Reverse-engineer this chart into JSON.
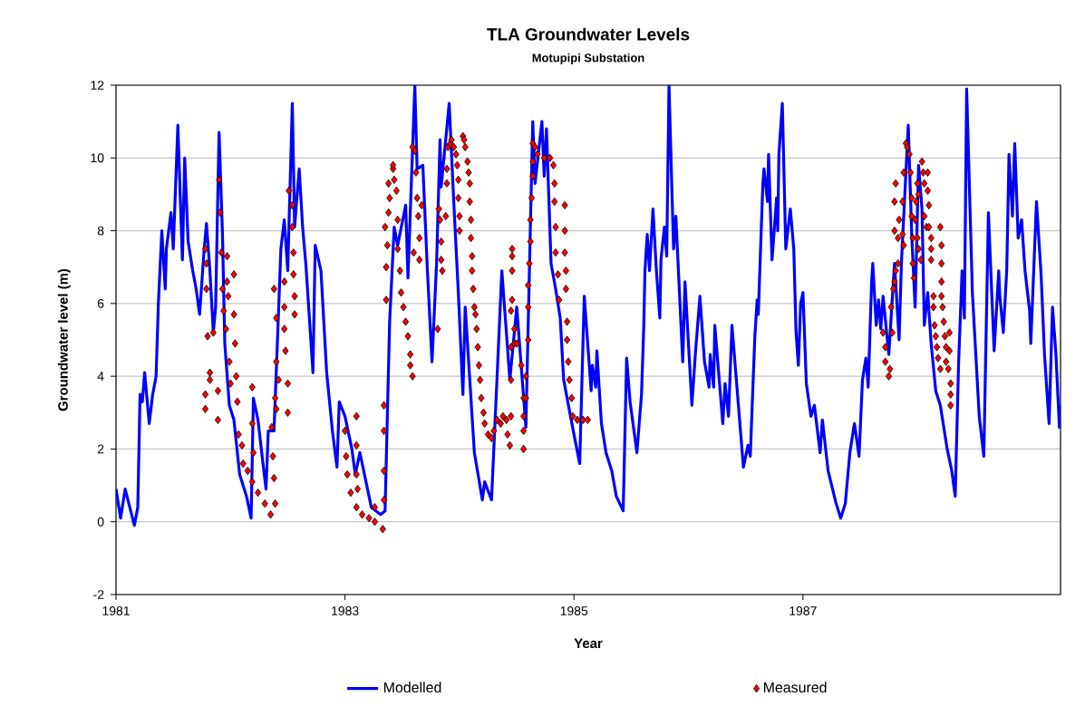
{
  "chart_data": {
    "type": "line",
    "title": "TLA Groundwater Levels",
    "subtitle": "Motupipi Substation",
    "xlabel": "Year",
    "ylabel": "Groundwater level (m)",
    "xlim": [
      1981,
      1989.25
    ],
    "xticks": [
      1981,
      1983,
      1985,
      1987
    ],
    "ylim": [
      -2,
      12
    ],
    "yticks": [
      -2,
      0,
      2,
      4,
      6,
      8,
      10,
      12
    ],
    "grid": "y",
    "legend": "bottom",
    "series": [
      {
        "name": "Modelled",
        "color": "#0000ff",
        "marker": "none",
        "x": [
          1981.0,
          1981.04,
          1981.08,
          1981.12,
          1981.16,
          1981.19,
          1981.21,
          1981.23,
          1981.25,
          1981.29,
          1981.32,
          1981.35,
          1981.37,
          1981.4,
          1981.43,
          1981.44,
          1981.48,
          1981.5,
          1981.54,
          1981.58,
          1981.6,
          1981.63,
          1981.67,
          1981.7,
          1981.73,
          1981.77,
          1981.79,
          1981.82,
          1981.85,
          1981.87,
          1981.9,
          1981.93,
          1981.95,
          1981.99,
          1982.03,
          1982.08,
          1982.14,
          1982.18,
          1982.2,
          1982.24,
          1982.28,
          1982.31,
          1982.33,
          1982.38,
          1982.42,
          1982.44,
          1982.47,
          1982.5,
          1982.54,
          1982.56,
          1982.6,
          1982.63,
          1982.66,
          1982.72,
          1982.74,
          1982.79,
          1982.84,
          1982.89,
          1982.93,
          1982.95,
          1983.0,
          1983.06,
          1983.09,
          1983.13,
          1983.23,
          1983.31,
          1983.35,
          1983.39,
          1983.43,
          1983.46,
          1983.53,
          1983.55,
          1983.61,
          1983.63,
          1983.68,
          1983.72,
          1983.76,
          1983.8,
          1983.83,
          1983.84,
          1983.91,
          1983.95,
          1983.99,
          1984.03,
          1984.05,
          1984.13,
          1984.2,
          1984.22,
          1984.28,
          1984.32,
          1984.37,
          1984.44,
          1984.5,
          1984.58,
          1984.64,
          1984.66,
          1984.72,
          1984.74,
          1984.76,
          1984.8,
          1984.84,
          1984.88,
          1984.91,
          1985.0,
          1985.05,
          1985.09,
          1985.15,
          1985.16,
          1985.19,
          1985.2,
          1985.24,
          1985.28,
          1985.33,
          1985.37,
          1985.43,
          1985.46,
          1985.49,
          1985.55,
          1985.59,
          1985.61,
          1985.62,
          1985.64,
          1985.66,
          1985.69,
          1985.72,
          1985.75,
          1985.76,
          1985.79,
          1985.81,
          1985.83,
          1985.87,
          1985.89,
          1985.95,
          1985.97,
          1986.03,
          1986.06,
          1986.1,
          1986.14,
          1986.18,
          1986.19,
          1986.22,
          1986.23,
          1986.3,
          1986.32,
          1986.35,
          1986.38,
          1986.48,
          1986.52,
          1986.54,
          1986.58,
          1986.6,
          1986.61,
          1986.65,
          1986.66,
          1986.69,
          1986.7,
          1986.73,
          1986.77,
          1986.78,
          1986.79,
          1986.82,
          1986.85,
          1986.89,
          1986.92,
          1986.94,
          1986.96,
          1986.98,
          1987.0,
          1987.03,
          1987.07,
          1987.1,
          1987.15,
          1987.17,
          1987.22,
          1987.29,
          1987.33,
          1987.37,
          1987.41,
          1987.45,
          1987.49,
          1987.52,
          1987.55,
          1987.57,
          1987.6,
          1987.61,
          1987.64,
          1987.66,
          1987.68,
          1987.7,
          1987.75,
          1987.8,
          1987.84,
          1987.86,
          1987.92,
          1987.95,
          1987.98,
          1988.01,
          1988.04,
          1988.06,
          1988.09,
          1988.12,
          1988.16,
          1988.2,
          1988.26,
          1988.3,
          1988.33,
          1988.36,
          1988.39,
          1988.41,
          1988.43,
          1988.48,
          1988.54,
          1988.58,
          1988.62,
          1988.67,
          1988.71,
          1988.72,
          1988.75,
          1988.78,
          1988.8,
          1988.83,
          1988.85,
          1988.88,
          1988.91,
          1988.94,
          1988.98,
          1988.99,
          1989.04,
          1989.08,
          1989.11,
          1989.15,
          1989.18,
          1989.21,
          1989.24,
          1989.25
        ],
        "values": [
          0.9,
          0.1,
          0.9,
          0.4,
          -0.1,
          0.4,
          3.5,
          3.3,
          4.1,
          2.7,
          3.5,
          4.0,
          6.0,
          8.0,
          6.4,
          7.5,
          8.5,
          7.5,
          10.9,
          7.2,
          10.0,
          7.7,
          6.9,
          6.4,
          5.7,
          7.5,
          8.2,
          6.9,
          5.2,
          5.9,
          10.7,
          7.9,
          4.9,
          3.2,
          2.8,
          1.3,
          0.7,
          0.1,
          3.4,
          2.8,
          1.7,
          0.9,
          2.5,
          2.5,
          5.8,
          7.5,
          8.3,
          6.9,
          11.5,
          8.1,
          9.7,
          8.1,
          7.0,
          4.1,
          7.6,
          6.9,
          4.1,
          2.5,
          1.5,
          3.3,
          2.9,
          2.0,
          1.3,
          1.9,
          0.4,
          0.2,
          0.3,
          5.5,
          8.1,
          7.6,
          8.7,
          6.7,
          12.0,
          9.7,
          9.8,
          6.9,
          4.4,
          7.1,
          10.5,
          9.2,
          11.5,
          8.8,
          6.3,
          3.5,
          5.9,
          1.9,
          0.6,
          1.1,
          0.6,
          3.4,
          6.9,
          3.9,
          5.9,
          2.6,
          11.0,
          9.3,
          11.0,
          9.5,
          10.8,
          7.1,
          6.4,
          5.6,
          3.9,
          2.4,
          1.6,
          6.2,
          3.6,
          4.3,
          3.7,
          4.7,
          2.7,
          1.9,
          1.4,
          0.7,
          0.3,
          4.5,
          3.3,
          1.9,
          3.5,
          5.4,
          6.9,
          7.9,
          6.9,
          8.6,
          6.9,
          5.6,
          7.2,
          8.1,
          7.3,
          12.0,
          7.5,
          8.4,
          4.4,
          6.6,
          3.2,
          4.6,
          6.2,
          4.4,
          3.7,
          4.6,
          3.7,
          5.4,
          2.7,
          3.8,
          2.9,
          5.4,
          1.5,
          2.1,
          1.8,
          5.1,
          6.1,
          5.7,
          9.3,
          9.7,
          8.8,
          10.1,
          7.2,
          8.9,
          8.0,
          10.1,
          11.5,
          7.5,
          8.6,
          7.5,
          5.2,
          4.3,
          6.0,
          6.3,
          3.8,
          2.9,
          3.2,
          1.9,
          2.8,
          1.4,
          0.5,
          0.1,
          0.5,
          1.9,
          2.7,
          1.8,
          3.9,
          4.5,
          3.7,
          6.6,
          7.1,
          5.4,
          6.1,
          5.3,
          6.2,
          4.6,
          7.1,
          5.0,
          7.1,
          10.9,
          7.9,
          5.9,
          9.8,
          8.6,
          5.4,
          6.3,
          4.9,
          3.6,
          3.2,
          2.0,
          1.4,
          0.7,
          4.4,
          6.9,
          5.6,
          11.9,
          6.3,
          2.9,
          1.8,
          8.5,
          4.7,
          6.9,
          6.2,
          5.2,
          6.9,
          10.1,
          8.4,
          10.4,
          7.8,
          8.3,
          6.9,
          5.8,
          4.9,
          8.8,
          6.8,
          4.6,
          2.7,
          5.9,
          4.6,
          2.6,
          3.2
        ]
      },
      {
        "name": "Measured",
        "type": "scatter",
        "color": "#ff0000",
        "marker": "diamond",
        "x": [
          1981.78,
          1981.79,
          1981.79,
          1981.78,
          1981.78,
          1981.8,
          1981.82,
          1981.82,
          1981.85,
          1981.89,
          1981.89,
          1981.9,
          1981.91,
          1981.92,
          1981.93,
          1981.94,
          1981.97,
          1981.97,
          1981.98,
          1981.96,
          1981.99,
          1982.0,
          1982.03,
          1982.03,
          1982.04,
          1982.05,
          1982.06,
          1982.07,
          1982.1,
          1982.11,
          1982.15,
          1982.19,
          1982.24,
          1982.3,
          1982.35,
          1982.19,
          1982.19,
          1982.2,
          1982.38,
          1982.36,
          1982.37,
          1982.38,
          1982.39,
          1982.4,
          1982.4,
          1982.39,
          1982.4,
          1982.42,
          1982.47,
          1982.47,
          1982.47,
          1982.48,
          1982.5,
          1982.5,
          1982.51,
          1982.54,
          1982.54,
          1982.55,
          1982.55,
          1982.56,
          1982.56,
          1983.0,
          1983.01,
          1983.02,
          1983.05,
          1983.1,
          1983.15,
          1983.21,
          1983.26,
          1983.33,
          1983.1,
          1983.1,
          1983.1,
          1983.11,
          1983.26,
          1983.34,
          1983.34,
          1983.34,
          1983.34,
          1983.36,
          1983.36,
          1983.37,
          1983.35,
          1983.38,
          1983.39,
          1983.38,
          1983.42,
          1983.42,
          1983.43,
          1983.45,
          1983.46,
          1983.46,
          1983.48,
          1983.49,
          1983.51,
          1983.53,
          1983.55,
          1983.57,
          1983.57,
          1983.59,
          1983.59,
          1983.61,
          1983.62,
          1983.63,
          1983.64,
          1983.65,
          1983.65,
          1983.6,
          1983.67,
          1983.81,
          1983.82,
          1983.83,
          1983.84,
          1983.84,
          1983.85,
          1983.88,
          1983.89,
          1983.89,
          1983.9,
          1983.92,
          1983.93,
          1983.95,
          1983.97,
          1983.98,
          1983.99,
          1983.99,
          1984.0,
          1984.0,
          1984.03,
          1984.04,
          1984.05,
          1984.07,
          1984.08,
          1984.09,
          1984.09,
          1984.1,
          1984.1,
          1984.11,
          1984.11,
          1984.12,
          1984.13,
          1984.14,
          1984.15,
          1984.16,
          1984.17,
          1984.18,
          1984.19,
          1984.21,
          1984.22,
          1984.25,
          1984.28,
          1984.3,
          1984.33,
          1984.36,
          1984.38,
          1984.41,
          1984.42,
          1984.44,
          1984.45,
          1984.45,
          1984.46,
          1984.46,
          1984.46,
          1984.46,
          1984.45,
          1984.48,
          1984.45,
          1984.48,
          1984.5,
          1984.54,
          1984.56,
          1984.56,
          1984.56,
          1984.56,
          1984.58,
          1984.58,
          1984.6,
          1984.6,
          1984.6,
          1984.61,
          1984.62,
          1984.62,
          1984.63,
          1984.64,
          1984.64,
          1984.64,
          1984.66,
          1984.68,
          1984.74,
          1984.79,
          1984.82,
          1984.83,
          1984.83,
          1984.84,
          1984.84,
          1984.86,
          1984.87,
          1984.92,
          1984.92,
          1984.92,
          1984.93,
          1984.93,
          1984.94,
          1984.94,
          1984.95,
          1984.96,
          1984.98,
          1984.99,
          1985.03,
          1985.08,
          1985.12,
          1987.7,
          1987.72,
          1987.72,
          1987.75,
          1987.76,
          1987.78,
          1987.77,
          1987.79,
          1987.8,
          1987.81,
          1987.83,
          1987.83,
          1987.8,
          1987.8,
          1987.81,
          1987.84,
          1987.87,
          1987.87,
          1987.88,
          1987.88,
          1987.9,
          1987.91,
          1987.93,
          1987.94,
          1987.95,
          1987.95,
          1987.96,
          1987.96,
          1987.97,
          1987.98,
          1987.99,
          1988.0,
          1988.01,
          1988.0,
          1988.01,
          1988.03,
          1988.04,
          1988.05,
          1988.06,
          1988.09,
          1988.09,
          1988.1,
          1988.06,
          1988.08,
          1988.1,
          1988.12,
          1988.12,
          1988.12,
          1988.14,
          1988.14,
          1988.15,
          1988.16,
          1988.17,
          1988.18,
          1988.2,
          1988.2,
          1988.21,
          1988.21,
          1988.21,
          1988.21,
          1988.22,
          1988.23,
          1988.24,
          1988.25,
          1988.25,
          1988.27,
          1988.28,
          1988.28,
          1988.29,
          1988.29,
          1988.29
        ],
        "values": [
          7.5,
          7.1,
          6.4,
          3.5,
          3.1,
          5.1,
          4.1,
          3.9,
          5.2,
          2.8,
          3.6,
          9.4,
          8.5,
          7.4,
          6.4,
          5.8,
          7.3,
          6.6,
          6.2,
          5.3,
          4.4,
          3.8,
          6.8,
          5.7,
          4.9,
          4.0,
          3.3,
          2.4,
          2.1,
          1.6,
          1.4,
          1.1,
          0.8,
          0.5,
          0.2,
          3.7,
          2.7,
          1.9,
          6.4,
          2.6,
          1.8,
          1.2,
          0.5,
          5.6,
          4.4,
          3.4,
          3.1,
          3.9,
          6.6,
          5.9,
          5.3,
          4.7,
          3.8,
          3.0,
          9.1,
          8.7,
          8.1,
          7.4,
          6.8,
          6.2,
          5.7,
          2.5,
          1.8,
          1.3,
          0.8,
          0.4,
          0.2,
          0.1,
          0.0,
          -0.2,
          2.9,
          2.1,
          1.3,
          0.9,
          0.4,
          3.2,
          2.5,
          1.4,
          0.6,
          6.1,
          7.0,
          7.6,
          8.1,
          8.5,
          8.9,
          9.3,
          9.7,
          9.8,
          9.4,
          9.1,
          8.3,
          7.5,
          6.9,
          6.3,
          5.9,
          5.5,
          5.1,
          4.6,
          4.3,
          4.0,
          10.3,
          10.2,
          9.6,
          8.9,
          8.4,
          7.8,
          7.2,
          7.4,
          8.7,
          5.3,
          8.6,
          8.3,
          7.7,
          7.2,
          6.9,
          8.4,
          9.3,
          9.7,
          10.3,
          10.4,
          10.5,
          10.3,
          10.1,
          9.8,
          9.4,
          8.9,
          8.4,
          8.0,
          10.6,
          10.5,
          10.3,
          9.9,
          9.6,
          9.3,
          8.8,
          8.3,
          7.8,
          7.3,
          6.9,
          6.4,
          5.9,
          5.7,
          5.3,
          4.8,
          4.3,
          3.9,
          3.4,
          3.0,
          2.7,
          2.4,
          2.3,
          2.5,
          2.8,
          2.7,
          2.9,
          2.8,
          2.4,
          2.1,
          2.9,
          3.9,
          7.5,
          7.3,
          6.9,
          6.1,
          5.8,
          5.3,
          4.8,
          4.9,
          4.9,
          4.3,
          3.4,
          2.9,
          2.5,
          2.0,
          3.4,
          4.0,
          5.0,
          5.9,
          6.5,
          7.1,
          7.7,
          8.3,
          8.9,
          9.5,
          9.9,
          10.4,
          10.3,
          10.1,
          10.0,
          10.0,
          9.8,
          9.3,
          8.8,
          8.1,
          7.4,
          6.8,
          6.1,
          8.7,
          8.0,
          7.4,
          6.9,
          6.4,
          5.5,
          5.0,
          4.4,
          3.9,
          3.4,
          2.9,
          2.8,
          2.8,
          2.8,
          5.2,
          4.8,
          4.4,
          4.0,
          4.2,
          5.2,
          5.9,
          6.4,
          6.6,
          6.9,
          7.1,
          7.8,
          8.0,
          8.8,
          9.3,
          8.3,
          8.8,
          7.9,
          7.6,
          9.6,
          10.4,
          10.3,
          10.1,
          9.6,
          8.9,
          8.4,
          7.8,
          7.1,
          6.7,
          8.3,
          8.8,
          9.3,
          9.0,
          7.8,
          7.5,
          7.2,
          9.9,
          9.6,
          9.3,
          9.6,
          9.1,
          8.7,
          8.4,
          8.1,
          8.1,
          7.8,
          7.5,
          7.2,
          6.2,
          5.9,
          5.4,
          5.1,
          4.8,
          4.5,
          4.2,
          8.1,
          7.6,
          7.1,
          6.6,
          6.2,
          5.9,
          5.5,
          5.1,
          4.8,
          4.4,
          4.2,
          5.2,
          4.7,
          3.8,
          3.5,
          3.2
        ]
      }
    ]
  }
}
